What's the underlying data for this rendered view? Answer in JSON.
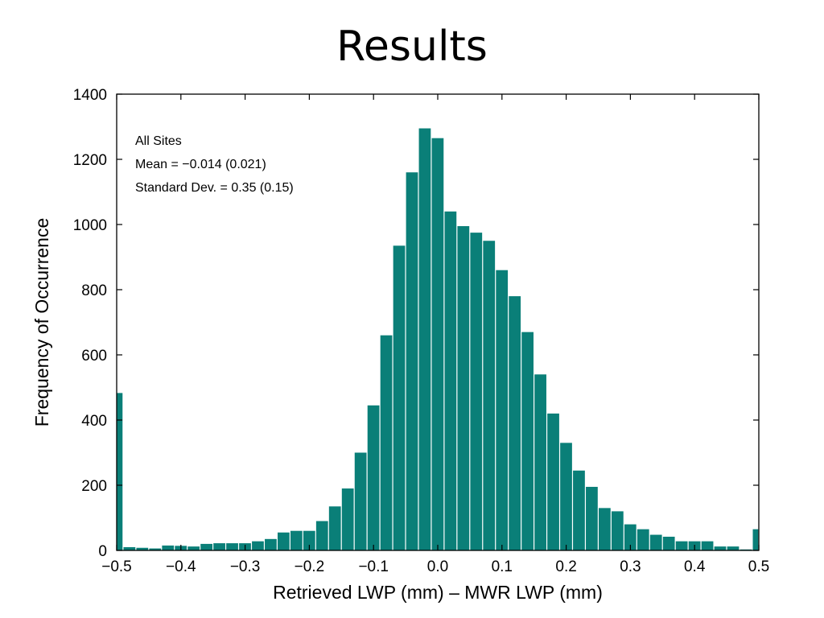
{
  "slide": {
    "title": "Results"
  },
  "chart_data": {
    "type": "bar",
    "title": "",
    "xlabel": "Retrieved LWP (mm) – MWR LWP (mm)",
    "ylabel": "Frequency of Occurrence",
    "xlim": [
      -0.5,
      0.5
    ],
    "ylim": [
      0,
      1400
    ],
    "bin_width": 0.02,
    "bar_color": "#0a7f78",
    "xticks": [
      "-0.5",
      "-0.4",
      "-0.3",
      "-0.2",
      "-0.1",
      "0.0",
      "0.1",
      "0.2",
      "0.3",
      "0.4",
      "0.5"
    ],
    "yticks": [
      "0",
      "200",
      "400",
      "600",
      "800",
      "1000",
      "1200",
      "1400"
    ],
    "annotations": [
      "All Sites",
      "Mean = -0.014 (0.021)",
      "Standard Dev. = 0.35 (0.15)"
    ],
    "bins": [
      {
        "x0": -0.5,
        "x1": -0.49,
        "y": 483
      },
      {
        "x0": -0.49,
        "x1": -0.47,
        "y": 10
      },
      {
        "x0": -0.47,
        "x1": -0.45,
        "y": 8
      },
      {
        "x0": -0.45,
        "x1": -0.43,
        "y": 6
      },
      {
        "x0": -0.43,
        "x1": -0.41,
        "y": 15
      },
      {
        "x0": -0.41,
        "x1": -0.39,
        "y": 14
      },
      {
        "x0": -0.39,
        "x1": -0.37,
        "y": 12
      },
      {
        "x0": -0.37,
        "x1": -0.35,
        "y": 20
      },
      {
        "x0": -0.35,
        "x1": -0.33,
        "y": 22
      },
      {
        "x0": -0.33,
        "x1": -0.31,
        "y": 22
      },
      {
        "x0": -0.31,
        "x1": -0.29,
        "y": 22
      },
      {
        "x0": -0.29,
        "x1": -0.27,
        "y": 28
      },
      {
        "x0": -0.27,
        "x1": -0.25,
        "y": 35
      },
      {
        "x0": -0.25,
        "x1": -0.23,
        "y": 55
      },
      {
        "x0": -0.23,
        "x1": -0.21,
        "y": 60
      },
      {
        "x0": -0.21,
        "x1": -0.19,
        "y": 60
      },
      {
        "x0": -0.19,
        "x1": -0.17,
        "y": 90
      },
      {
        "x0": -0.17,
        "x1": -0.15,
        "y": 135
      },
      {
        "x0": -0.15,
        "x1": -0.13,
        "y": 190
      },
      {
        "x0": -0.13,
        "x1": -0.11,
        "y": 300
      },
      {
        "x0": -0.11,
        "x1": -0.09,
        "y": 445
      },
      {
        "x0": -0.09,
        "x1": -0.07,
        "y": 660
      },
      {
        "x0": -0.07,
        "x1": -0.05,
        "y": 935
      },
      {
        "x0": -0.05,
        "x1": -0.03,
        "y": 1160
      },
      {
        "x0": -0.03,
        "x1": -0.01,
        "y": 1295
      },
      {
        "x0": -0.01,
        "x1": 0.01,
        "y": 1265
      },
      {
        "x0": 0.01,
        "x1": 0.03,
        "y": 1040
      },
      {
        "x0": 0.03,
        "x1": 0.05,
        "y": 995
      },
      {
        "x0": 0.05,
        "x1": 0.07,
        "y": 975
      },
      {
        "x0": 0.07,
        "x1": 0.09,
        "y": 950
      },
      {
        "x0": 0.09,
        "x1": 0.11,
        "y": 860
      },
      {
        "x0": 0.11,
        "x1": 0.13,
        "y": 780
      },
      {
        "x0": 0.13,
        "x1": 0.15,
        "y": 670
      },
      {
        "x0": 0.15,
        "x1": 0.17,
        "y": 540
      },
      {
        "x0": 0.17,
        "x1": 0.19,
        "y": 420
      },
      {
        "x0": 0.19,
        "x1": 0.21,
        "y": 330
      },
      {
        "x0": 0.21,
        "x1": 0.23,
        "y": 245
      },
      {
        "x0": 0.23,
        "x1": 0.25,
        "y": 195
      },
      {
        "x0": 0.25,
        "x1": 0.27,
        "y": 130
      },
      {
        "x0": 0.27,
        "x1": 0.29,
        "y": 120
      },
      {
        "x0": 0.29,
        "x1": 0.31,
        "y": 80
      },
      {
        "x0": 0.31,
        "x1": 0.33,
        "y": 65
      },
      {
        "x0": 0.33,
        "x1": 0.35,
        "y": 48
      },
      {
        "x0": 0.35,
        "x1": 0.37,
        "y": 42
      },
      {
        "x0": 0.37,
        "x1": 0.39,
        "y": 28
      },
      {
        "x0": 0.39,
        "x1": 0.41,
        "y": 28
      },
      {
        "x0": 0.41,
        "x1": 0.43,
        "y": 28
      },
      {
        "x0": 0.43,
        "x1": 0.45,
        "y": 12
      },
      {
        "x0": 0.45,
        "x1": 0.47,
        "y": 12
      },
      {
        "x0": 0.47,
        "x1": 0.49,
        "y": 3
      },
      {
        "x0": 0.49,
        "x1": 0.5,
        "y": 65
      }
    ]
  }
}
